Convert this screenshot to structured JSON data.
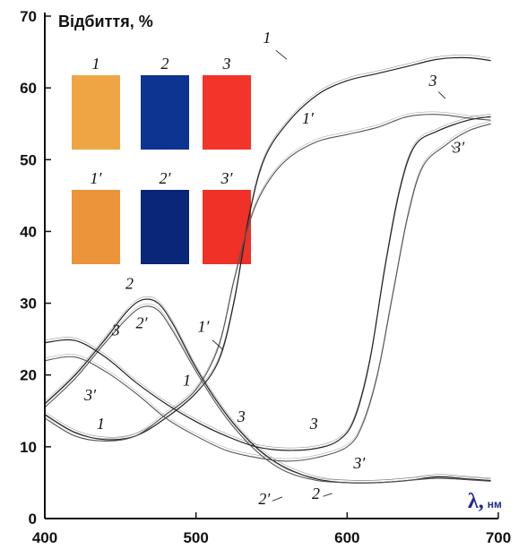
{
  "chart_data": {
    "type": "line",
    "ylabel": "Відбиття, %",
    "xlabel_symbol": "λ,",
    "xlabel_unit": "нм",
    "xlim": [
      400,
      700
    ],
    "ylim": [
      0,
      70
    ],
    "xticks": [
      400,
      500,
      600,
      700
    ],
    "yticks": [
      0,
      10,
      20,
      30,
      40,
      50,
      60,
      70
    ],
    "grid": false,
    "series": [
      {
        "name": "1",
        "color": "#222222",
        "label_at": [
          560,
          64
        ],
        "points": [
          [
            400,
            14.5
          ],
          [
            420,
            12
          ],
          [
            440,
            11
          ],
          [
            460,
            11.5
          ],
          [
            480,
            14
          ],
          [
            500,
            17.5
          ],
          [
            515,
            22
          ],
          [
            525,
            30
          ],
          [
            535,
            42
          ],
          [
            545,
            50
          ],
          [
            560,
            55
          ],
          [
            580,
            59
          ],
          [
            600,
            61
          ],
          [
            620,
            62
          ],
          [
            640,
            63
          ],
          [
            660,
            64
          ],
          [
            680,
            64.2
          ],
          [
            695,
            63.8
          ]
        ]
      },
      {
        "name": "1′",
        "color": "#555555",
        "label_at": [
          518,
          23.5
        ],
        "points": [
          [
            400,
            14
          ],
          [
            420,
            11.5
          ],
          [
            440,
            10.8
          ],
          [
            460,
            11.5
          ],
          [
            480,
            14.5
          ],
          [
            500,
            18
          ],
          [
            515,
            24
          ],
          [
            525,
            33
          ],
          [
            535,
            41
          ],
          [
            545,
            46
          ],
          [
            560,
            50
          ],
          [
            580,
            52.5
          ],
          [
            600,
            53.5
          ],
          [
            620,
            54.5
          ],
          [
            640,
            56
          ],
          [
            660,
            56.3
          ],
          [
            680,
            55.8
          ],
          [
            695,
            55.5
          ]
        ]
      },
      {
        "name": "2",
        "color": "#222222",
        "label_at": [
          590,
          3.5
        ],
        "points": [
          [
            400,
            16
          ],
          [
            420,
            20
          ],
          [
            440,
            25
          ],
          [
            455,
            29
          ],
          [
            465,
            30.5
          ],
          [
            475,
            30
          ],
          [
            485,
            27
          ],
          [
            500,
            21
          ],
          [
            515,
            16
          ],
          [
            530,
            12
          ],
          [
            545,
            9
          ],
          [
            560,
            7
          ],
          [
            580,
            5.5
          ],
          [
            600,
            5
          ],
          [
            620,
            5
          ],
          [
            640,
            5.3
          ],
          [
            660,
            5.8
          ],
          [
            680,
            5.5
          ],
          [
            695,
            5.3
          ]
        ]
      },
      {
        "name": "2′",
        "color": "#555555",
        "label_at": [
          557,
          3
        ],
        "points": [
          [
            400,
            15.5
          ],
          [
            420,
            19.5
          ],
          [
            440,
            24.5
          ],
          [
            455,
            28
          ],
          [
            465,
            29.5
          ],
          [
            475,
            29
          ],
          [
            485,
            26
          ],
          [
            500,
            20.5
          ],
          [
            515,
            15.5
          ],
          [
            530,
            11.5
          ],
          [
            545,
            8.5
          ],
          [
            560,
            6.5
          ],
          [
            580,
            5.3
          ],
          [
            600,
            5
          ],
          [
            620,
            5
          ],
          [
            640,
            5.3
          ],
          [
            660,
            5.6
          ],
          [
            680,
            5.4
          ],
          [
            695,
            5.2
          ]
        ]
      },
      {
        "name": "3",
        "color": "#222222",
        "label_at": [
          665,
          58.5
        ],
        "points": [
          [
            400,
            24.5
          ],
          [
            420,
            24.8
          ],
          [
            440,
            22.5
          ],
          [
            460,
            19
          ],
          [
            480,
            16
          ],
          [
            500,
            13.5
          ],
          [
            520,
            11.5
          ],
          [
            540,
            10
          ],
          [
            560,
            9.5
          ],
          [
            580,
            9.8
          ],
          [
            595,
            11
          ],
          [
            605,
            14
          ],
          [
            615,
            22
          ],
          [
            625,
            35
          ],
          [
            635,
            46
          ],
          [
            645,
            52
          ],
          [
            660,
            54
          ],
          [
            680,
            55.5
          ],
          [
            695,
            56
          ]
        ]
      },
      {
        "name": "3′",
        "color": "#555555",
        "label_at": [
          669,
          52
        ],
        "points": [
          [
            400,
            22
          ],
          [
            420,
            22.5
          ],
          [
            440,
            20.5
          ],
          [
            460,
            17.5
          ],
          [
            480,
            14
          ],
          [
            500,
            11.5
          ],
          [
            520,
            9.5
          ],
          [
            540,
            8.5
          ],
          [
            560,
            8
          ],
          [
            580,
            8.5
          ],
          [
            600,
            10
          ],
          [
            610,
            13
          ],
          [
            620,
            20
          ],
          [
            630,
            31
          ],
          [
            640,
            42
          ],
          [
            650,
            49
          ],
          [
            665,
            52
          ],
          [
            680,
            54
          ],
          [
            695,
            55
          ]
        ]
      }
    ],
    "swatches": [
      {
        "label": "1",
        "color": "#f0a545"
      },
      {
        "label": "2",
        "color": "#0d3491"
      },
      {
        "label": "3",
        "color": "#f2342a"
      },
      {
        "label": "1′",
        "color": "#eb943a"
      },
      {
        "label": "2′",
        "color": "#0a2678"
      },
      {
        "label": "3′",
        "color": "#ef3128"
      }
    ]
  }
}
